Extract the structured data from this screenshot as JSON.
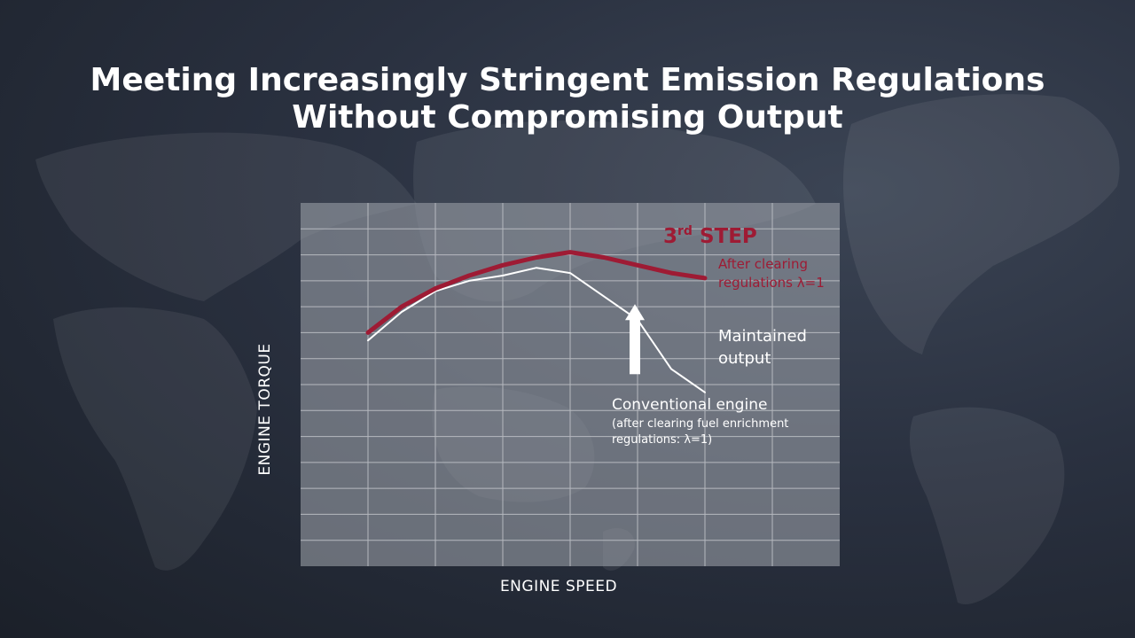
{
  "title": {
    "line1": "Meeting Increasingly Stringent Emission Regulations",
    "line2": "Without Compromising Output"
  },
  "chart_data": {
    "type": "line",
    "title": "Meeting Increasingly Stringent Emission Regulations Without Compromising Output",
    "xlabel": "ENGINE SPEED",
    "ylabel": "ENGINE TORQUE",
    "xlim": [
      0,
      8
    ],
    "ylim": [
      0,
      7
    ],
    "grid": true,
    "series": [
      {
        "name": "3rd STEP",
        "note_line1": "After clearing",
        "note_line2": "regulations λ=1",
        "color": "#9e1b34",
        "x": [
          1.0,
          1.5,
          2.0,
          2.5,
          3.0,
          3.5,
          4.0,
          4.5,
          5.0,
          5.5,
          6.0
        ],
        "y": [
          4.5,
          5.0,
          5.35,
          5.6,
          5.8,
          5.95,
          6.05,
          5.95,
          5.8,
          5.65,
          5.55
        ]
      },
      {
        "name": "Conventional engine",
        "note_line1": "(after clearing fuel enrichment",
        "note_line2": "regulations: λ=1)",
        "color": "#ffffff",
        "x": [
          1.0,
          1.5,
          2.0,
          2.5,
          3.0,
          3.5,
          4.0,
          4.5,
          5.0,
          5.5,
          6.0
        ],
        "y": [
          4.35,
          4.9,
          5.3,
          5.5,
          5.6,
          5.75,
          5.65,
          5.2,
          4.75,
          3.8,
          3.35
        ]
      }
    ],
    "annotation": {
      "text_line1": "Maintained",
      "text_line2": "output",
      "arrow_x": 5.0,
      "arrow_from_y": 3.7,
      "arrow_to_y": 5.05
    }
  },
  "colors": {
    "plot_bg": "#9a9ea6",
    "grid": "#b6b9bf",
    "accent_red": "#9e1b34",
    "text": "#ffffff"
  }
}
